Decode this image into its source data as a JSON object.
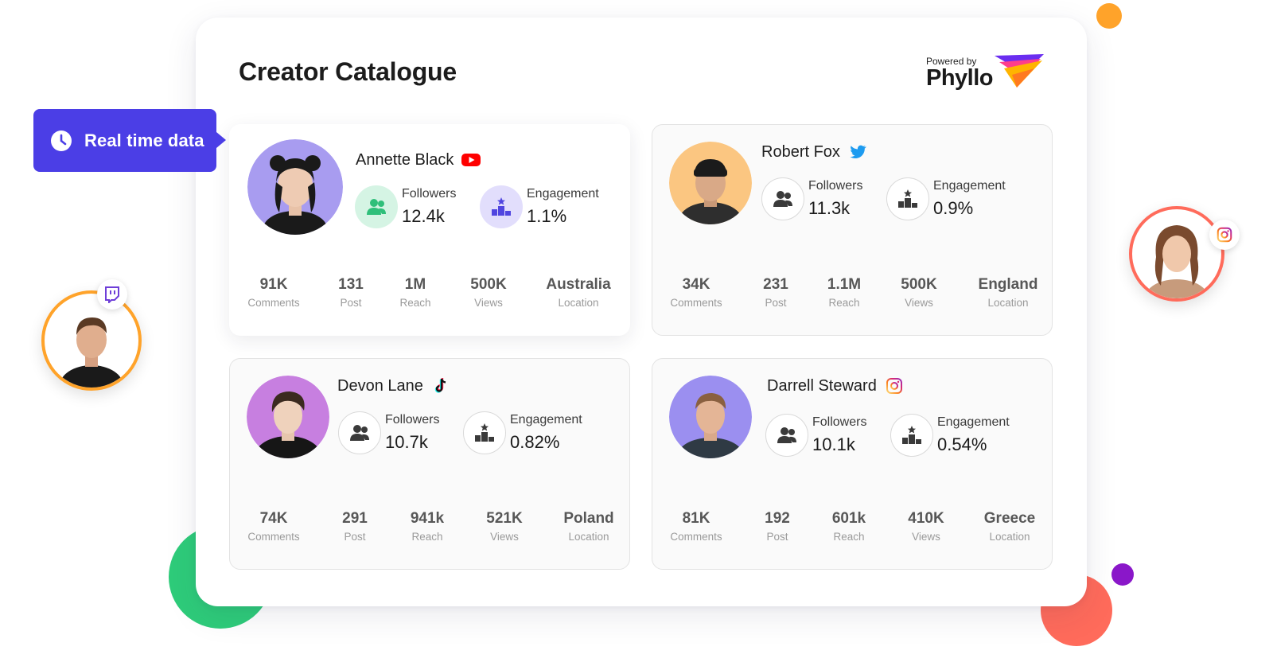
{
  "page": {
    "title": "Creator Catalogue",
    "powered_by": "Powered by",
    "brand_name": "Phyllo"
  },
  "realtime": {
    "label": "Real time data",
    "icon": "clock-icon"
  },
  "colors": {
    "accent": "#4b3ee6",
    "green_blob": "#2ecc7a",
    "coral_blob": "#ff6b5b",
    "orange_dot": "#ffa32a",
    "purple_dot": "#8a17c9",
    "youtube": "#ff0000",
    "twitter": "#1d9bf0",
    "instagram": "#e1306c",
    "twitch": "#6e3ed8"
  },
  "creators": [
    {
      "name": "Annette Black",
      "platform": "youtube-icon",
      "followers_label": "Followers",
      "followers": "12.4k",
      "engagement_label": "Engagement",
      "engagement": "1.1%",
      "stats": [
        {
          "value": "91K",
          "label": "Comments"
        },
        {
          "value": "131",
          "label": "Post"
        },
        {
          "value": "1M",
          "label": "Reach"
        },
        {
          "value": "500K",
          "label": "Views"
        },
        {
          "value": "Australia",
          "label": "Location"
        }
      ]
    },
    {
      "name": "Robert Fox",
      "platform": "twitter-icon",
      "followers_label": "Followers",
      "followers": "11.3k",
      "engagement_label": "Engagement",
      "engagement": "0.9%",
      "stats": [
        {
          "value": "34K",
          "label": "Comments"
        },
        {
          "value": "231",
          "label": "Post"
        },
        {
          "value": "1.1M",
          "label": "Reach"
        },
        {
          "value": "500K",
          "label": "Views"
        },
        {
          "value": "England",
          "label": "Location"
        }
      ]
    },
    {
      "name": "Devon Lane",
      "platform": "tiktok-icon",
      "followers_label": "Followers",
      "followers": "10.7k",
      "engagement_label": "Engagement",
      "engagement": "0.82%",
      "stats": [
        {
          "value": "74K",
          "label": "Comments"
        },
        {
          "value": "291",
          "label": "Post"
        },
        {
          "value": "941k",
          "label": "Reach"
        },
        {
          "value": "521K",
          "label": "Views"
        },
        {
          "value": "Poland",
          "label": "Location"
        }
      ]
    },
    {
      "name": "Darrell Steward",
      "platform": "instagram-icon",
      "followers_label": "Followers",
      "followers": "10.1k",
      "engagement_label": "Engagement",
      "engagement": "0.54%",
      "stats": [
        {
          "value": "81K",
          "label": "Comments"
        },
        {
          "value": "192",
          "label": "Post"
        },
        {
          "value": "601k",
          "label": "Reach"
        },
        {
          "value": "410K",
          "label": "Views"
        },
        {
          "value": "Greece",
          "label": "Location"
        }
      ]
    }
  ],
  "floating_profiles": [
    {
      "platform": "twitch-icon",
      "ring_color": "#ffa32a"
    },
    {
      "platform": "instagram-icon",
      "ring_color": "#ff6b5b"
    }
  ]
}
